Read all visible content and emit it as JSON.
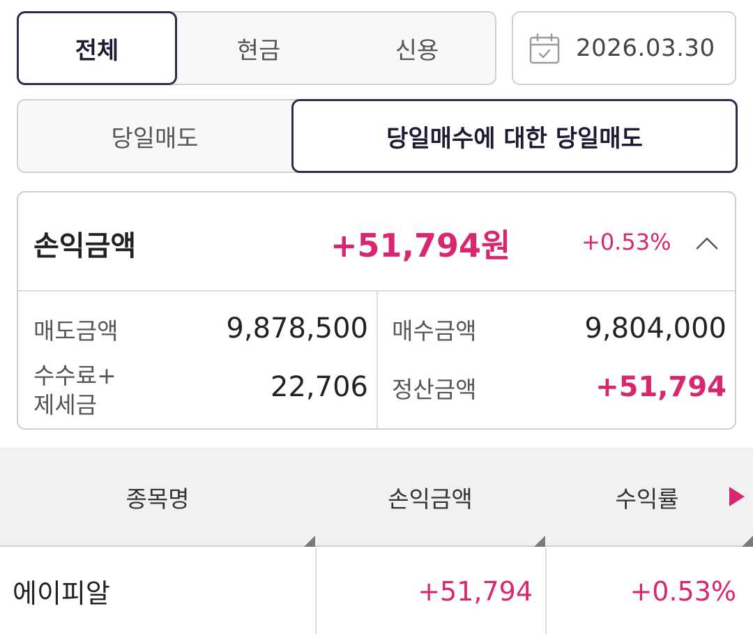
{
  "account_tabs": {
    "items": [
      {
        "label": "전체",
        "active": true
      },
      {
        "label": "현금",
        "active": false
      },
      {
        "label": "신용",
        "active": false
      }
    ]
  },
  "date_picker": {
    "icon": "calendar-icon",
    "value": "2026.03.30"
  },
  "trade_tabs": {
    "items": [
      {
        "label": "당일매도",
        "active": false
      },
      {
        "label": "당일매수에 대한 당일매도",
        "active": true
      }
    ]
  },
  "summary": {
    "title": "손익금액",
    "amount": "+51,794원",
    "rate": "+0.53%",
    "toggle_icon": "chevron-up-icon",
    "sell_amount_label": "매도금액",
    "sell_amount_value": "9,878,500",
    "fee_tax_label_line1": "수수료+",
    "fee_tax_label_line2": "제세금",
    "fee_tax_value": "22,706",
    "buy_amount_label": "매수금액",
    "buy_amount_value": "9,804,000",
    "settlement_label": "정산금액",
    "settlement_value": "+51,794"
  },
  "table": {
    "headers": [
      "종목명",
      "손익금액",
      "수익률"
    ],
    "next_icon": "triangle-right-icon",
    "rows": [
      {
        "name": "에이피알",
        "profit": "+51,794",
        "rate": "+0.53%"
      }
    ]
  },
  "colors": {
    "accent_positive": "#d9276f",
    "active_border": "#2d2a4a"
  }
}
